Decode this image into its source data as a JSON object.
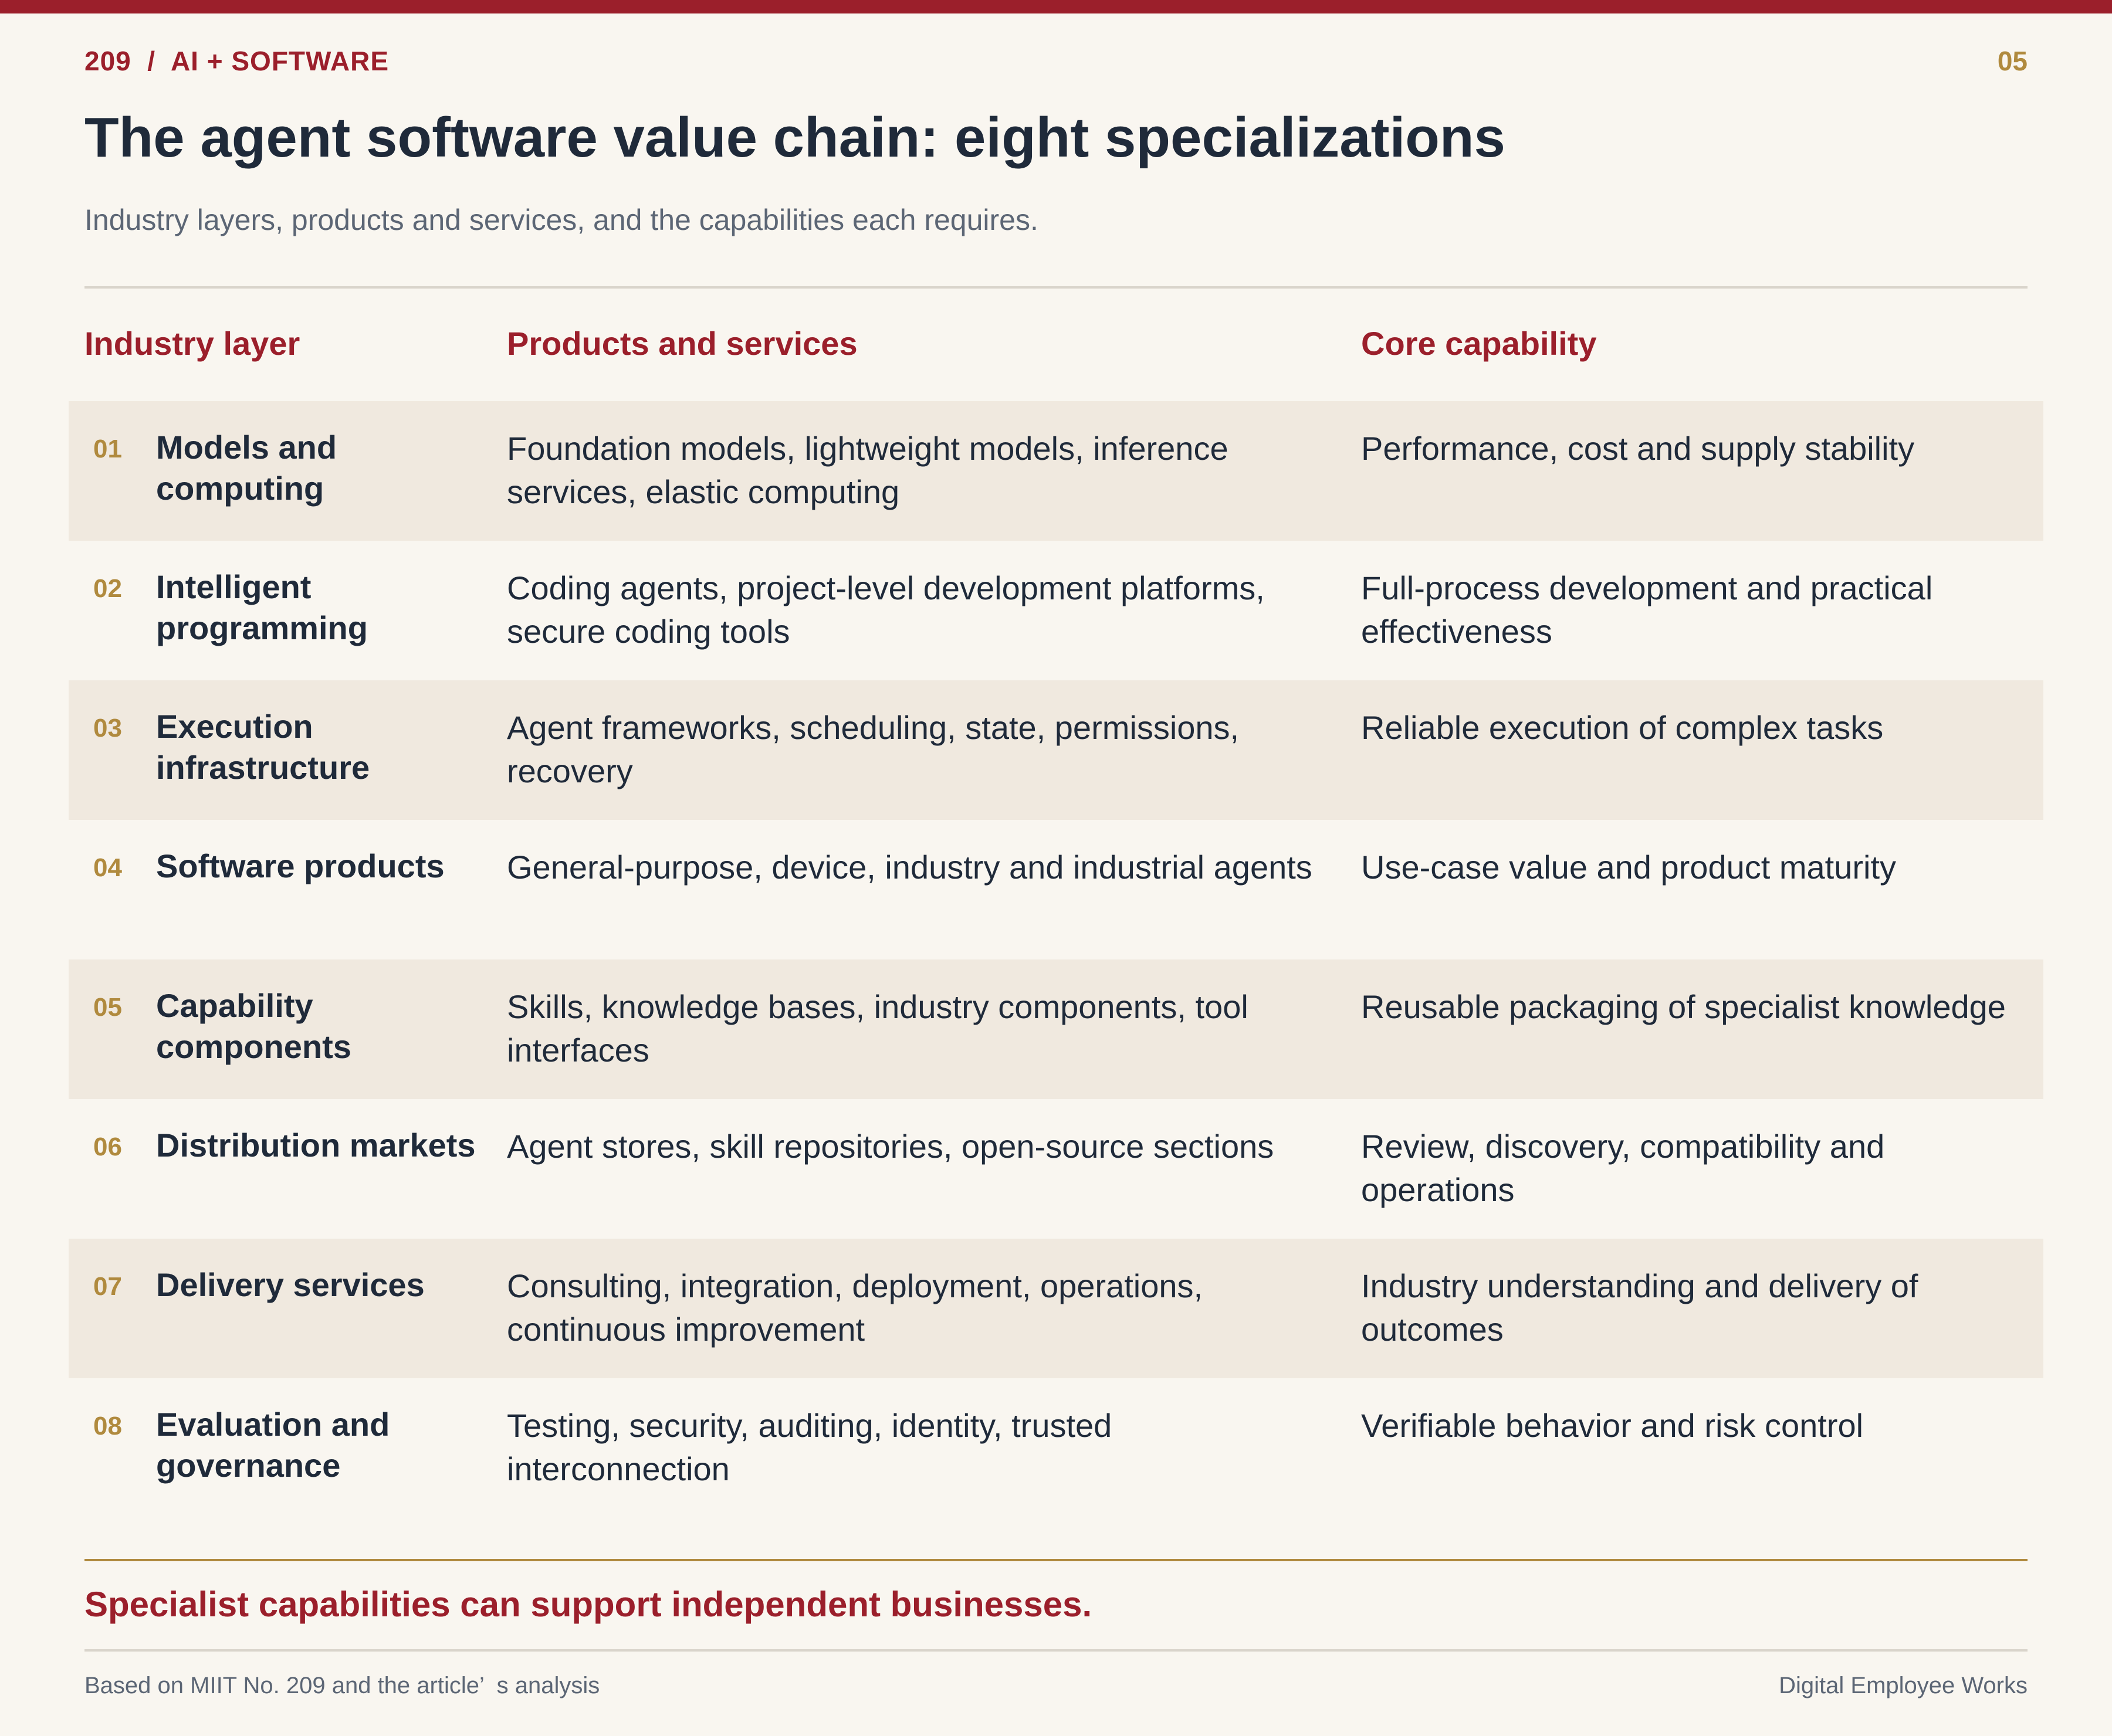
{
  "header": {
    "kicker": "209  /  AI + SOFTWARE",
    "page_number": "05"
  },
  "title": "The agent software value chain: eight specializations",
  "subtitle": "Industry layers, products and services, and the capabilities each requires.",
  "table": {
    "columns": [
      "Industry layer",
      "Products and services",
      "Core capability"
    ],
    "rows": [
      {
        "num": "01",
        "layer": "Models and computing",
        "products": "Foundation models, lightweight models, inference services, elastic computing",
        "capability": "Performance, cost and supply stability"
      },
      {
        "num": "02",
        "layer": "Intelligent programming",
        "products": "Coding agents, project-level development platforms, secure coding tools",
        "capability": "Full-process development and practical effectiveness"
      },
      {
        "num": "03",
        "layer": "Execution infrastructure",
        "products": "Agent frameworks, scheduling, state, permissions, recovery",
        "capability": "Reliable execution of complex tasks"
      },
      {
        "num": "04",
        "layer": "Software products",
        "products": "General-purpose, device, industry and industrial agents",
        "capability": "Use-case value and product maturity"
      },
      {
        "num": "05",
        "layer": "Capability components",
        "products": "Skills, knowledge bases, industry components, tool interfaces",
        "capability": "Reusable packaging of specialist knowledge"
      },
      {
        "num": "06",
        "layer": "Distribution markets",
        "products": "Agent stores, skill repositories, open-source sections",
        "capability": "Review, discovery, compatibility and operations"
      },
      {
        "num": "07",
        "layer": "Delivery services",
        "products": "Consulting, integration, deployment, operations, continuous improvement",
        "capability": "Industry understanding and delivery of outcomes"
      },
      {
        "num": "08",
        "layer": "Evaluation and governance",
        "products": "Testing, security, auditing, identity, trusted interconnection",
        "capability": "Verifiable behavior and risk control"
      }
    ]
  },
  "conclusion": "Specialist capabilities can support independent businesses.",
  "footer": {
    "source": "Based on MIIT No. 209 and the article’  s analysis",
    "brand": "Digital Employee Works"
  }
}
